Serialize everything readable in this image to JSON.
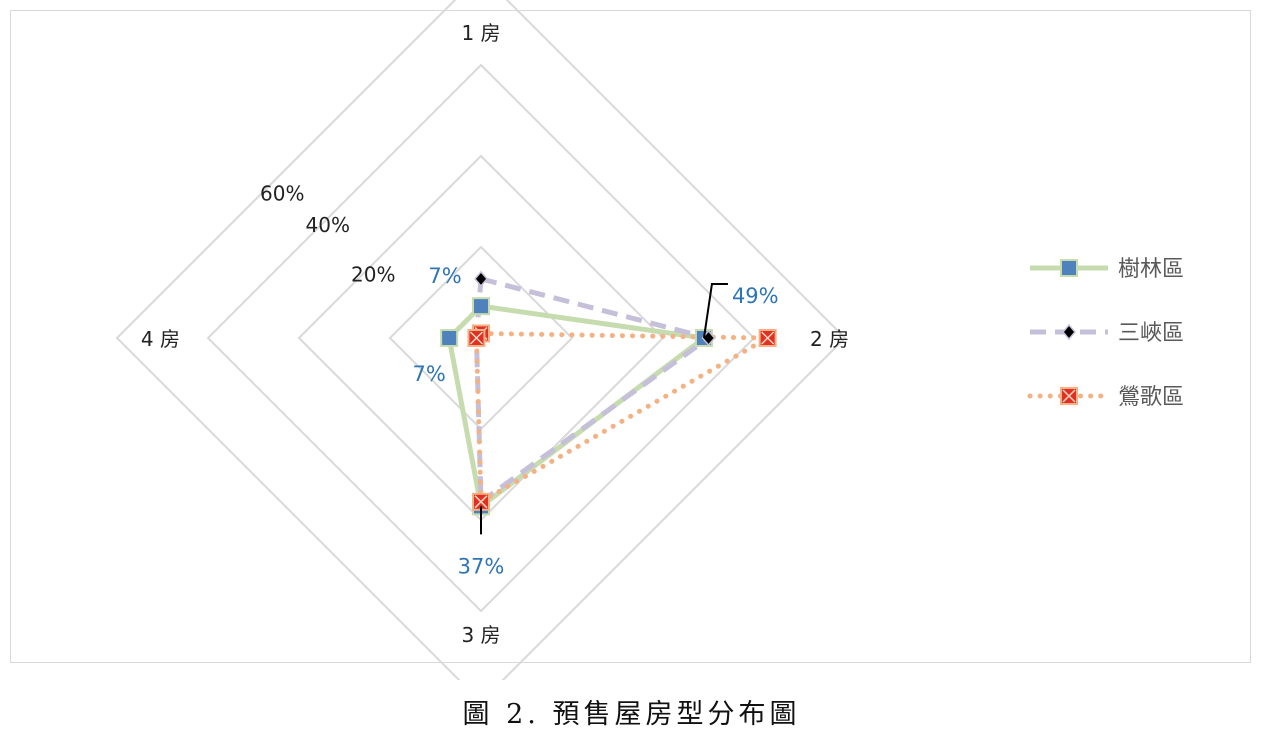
{
  "chart_data": {
    "type": "radar",
    "axes": [
      "1 房",
      "2 房",
      "3 房",
      "4 房"
    ],
    "tick_labels": [
      "20%",
      "40%",
      "60%"
    ],
    "rmax": 0.8,
    "grid": true,
    "legend_position": "right",
    "series": [
      {
        "name": "樹林區",
        "values": [
          0.07,
          0.49,
          0.37,
          0.07
        ],
        "color": "#c6dcae",
        "marker": "square",
        "marker_color": "#4f81bd",
        "line_style": "solid"
      },
      {
        "name": "三峽區",
        "values": [
          0.13,
          0.5,
          0.36,
          0.01
        ],
        "color": "#c5bfd9",
        "marker": "diamond",
        "marker_color": "#000000",
        "line_style": "dashed"
      },
      {
        "name": "鶯歌區",
        "values": [
          0.01,
          0.63,
          0.36,
          0.01
        ],
        "color": "#f4b183",
        "marker": "xsquare",
        "marker_color": "#e03024",
        "line_style": "dotted"
      }
    ],
    "data_labels": [
      {
        "series": 0,
        "axis": 0,
        "text": "7%"
      },
      {
        "series": 0,
        "axis": 1,
        "text": "49%"
      },
      {
        "series": 0,
        "axis": 2,
        "text": "37%"
      },
      {
        "series": 0,
        "axis": 3,
        "text": "7%"
      }
    ]
  },
  "caption": "圖 2. 預售屋房型分布圖"
}
